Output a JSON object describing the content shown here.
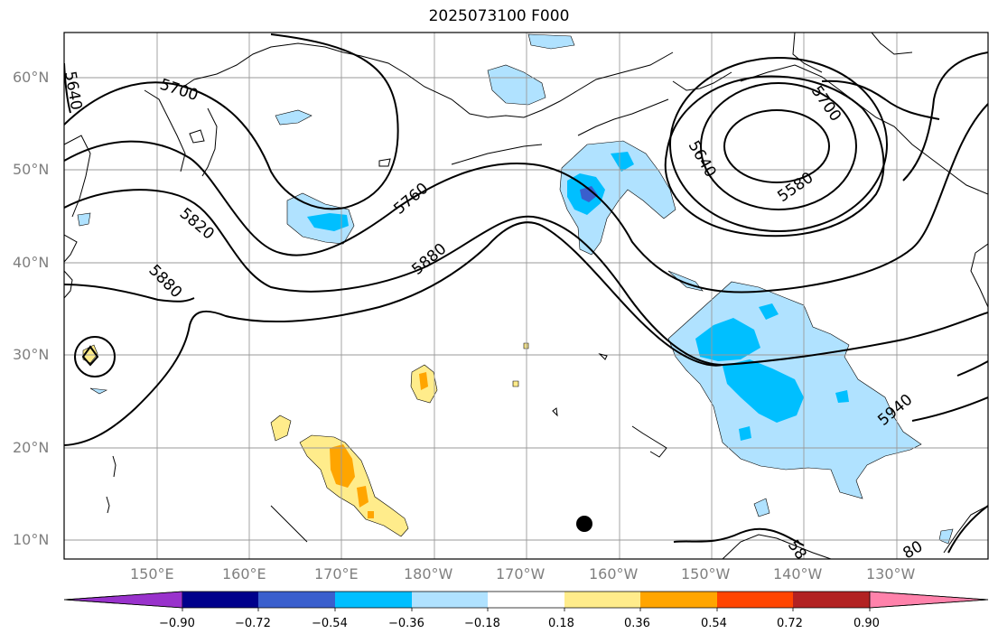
{
  "title": "2025073100 F000",
  "map": {
    "lat_labels": [
      "60°N",
      "50°N",
      "40°N",
      "30°N",
      "20°N",
      "10°N"
    ],
    "lon_labels": [
      "150°E",
      "160°E",
      "170°E",
      "180°W",
      "170°W",
      "160°W",
      "150°W",
      "140°W",
      "130°W"
    ],
    "contour_labels": [
      "5700",
      "5640",
      "5820",
      "5880",
      "5760",
      "5880",
      "5640",
      "5580",
      "5700",
      "5940",
      "58",
      "80"
    ],
    "colors": {
      "contour": "#000000",
      "coast": "#000000",
      "grid": "#9a9a9a",
      "light_blue": "#b0e2ff",
      "blue": "#00bfff",
      "royal_blue": "#3a5fcd",
      "yellow": "#ffec8b",
      "orange": "#ffa500"
    }
  },
  "colorbar": {
    "ticks": [
      "−0.90",
      "−0.72",
      "−0.54",
      "−0.36",
      "−0.18",
      "0.18",
      "0.36",
      "0.54",
      "0.72",
      "0.90"
    ],
    "colors": [
      "#9932cc",
      "#00008b",
      "#3a5fcd",
      "#00bfff",
      "#b0e2ff",
      "#ffffff",
      "#ffec8b",
      "#ffa500",
      "#ff4500",
      "#b22222",
      "#ff82ab"
    ]
  }
}
